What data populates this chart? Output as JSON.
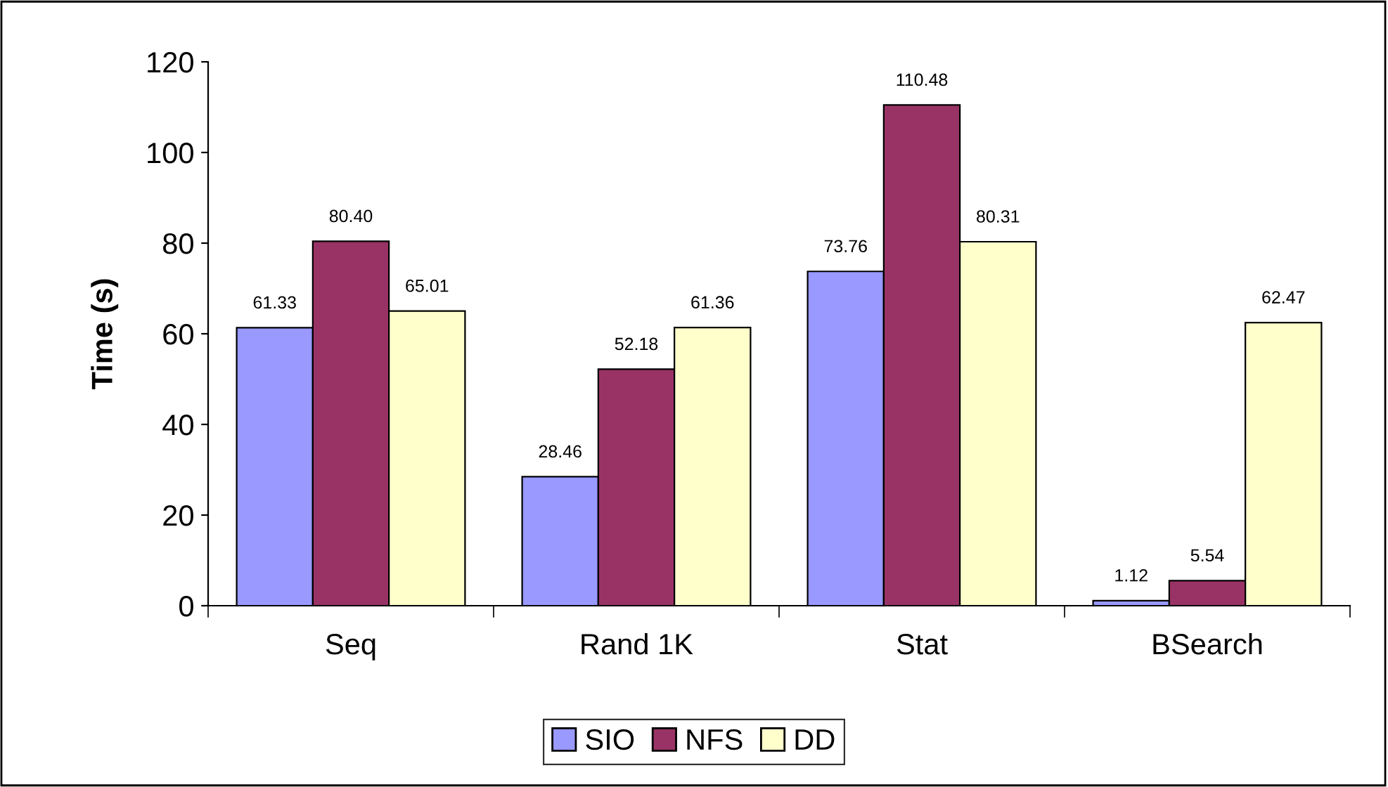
{
  "chart_data": {
    "type": "bar",
    "ylabel": "Time (s)",
    "categories": [
      "Seq",
      "Rand 1K",
      "Stat",
      "BSearch"
    ],
    "series": [
      {
        "name": "SIO",
        "color": "#9999ff",
        "values": [
          61.33,
          28.46,
          73.76,
          1.12
        ],
        "value_labels": [
          "61.33",
          "28.46",
          "73.76",
          "1.12"
        ]
      },
      {
        "name": "NFS",
        "color": "#993366",
        "values": [
          80.4,
          52.18,
          110.48,
          5.54
        ],
        "value_labels": [
          "80.40",
          "52.18",
          "110.48",
          "5.54"
        ]
      },
      {
        "name": "DD",
        "color": "#ffffcc",
        "values": [
          65.01,
          61.36,
          80.31,
          62.47
        ],
        "value_labels": [
          "65.01",
          "61.36",
          "80.31",
          "62.47"
        ]
      }
    ],
    "ylim": [
      0,
      120
    ],
    "yticks": [
      0,
      20,
      40,
      60,
      80,
      100,
      120
    ],
    "grid": false,
    "legend": "bottom"
  }
}
